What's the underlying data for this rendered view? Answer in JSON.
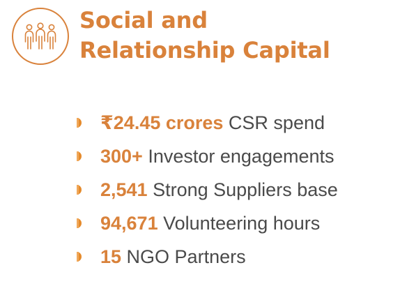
{
  "header": {
    "icon": "people-group-icon",
    "title_line1": "Social and",
    "title_line2": "Relationship Capital"
  },
  "colors": {
    "accent": "#d9823b",
    "text": "#4a4a4a"
  },
  "items": [
    {
      "highlight": "₹24.45 crores",
      "text": " CSR spend"
    },
    {
      "highlight": "300+",
      "text": " Investor engagements"
    },
    {
      "highlight": "2,541",
      "text": " Strong Suppliers base"
    },
    {
      "highlight": "94,671",
      "text": " Volunteering hours"
    },
    {
      "highlight": "15",
      "text": " NGO Partners"
    }
  ]
}
